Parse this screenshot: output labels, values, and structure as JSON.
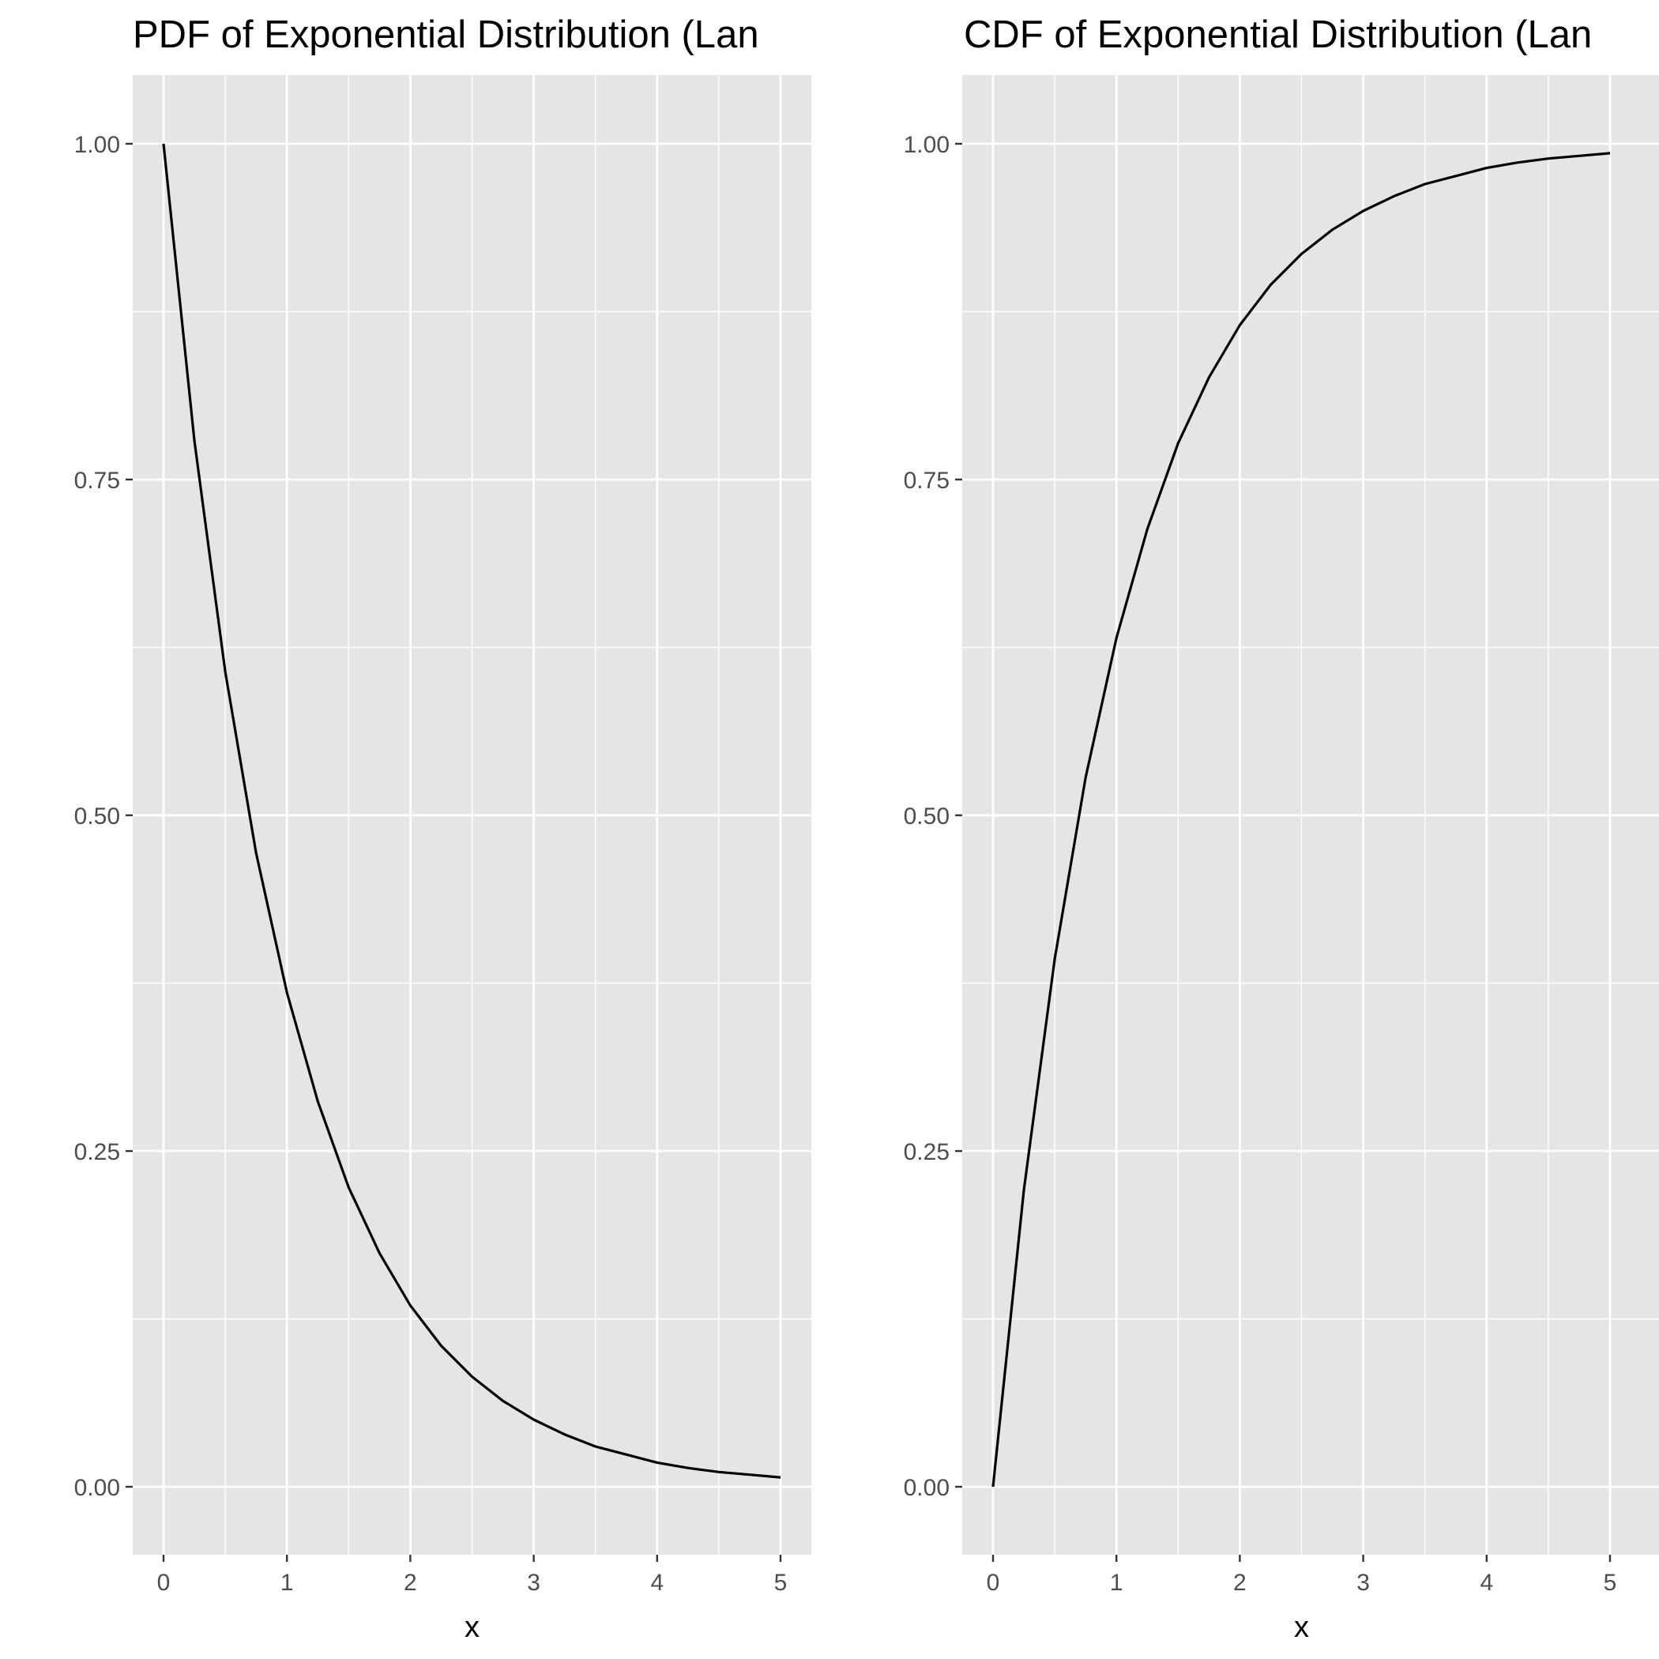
{
  "colors": {
    "panel_background": "#e5e5e5",
    "grid_line": "#ffffff",
    "curve": "#000000",
    "tick_text": "#4d4d4d",
    "tick_mark": "#333333",
    "title_text": "#000000"
  },
  "chart_data": [
    {
      "type": "line",
      "title": "PDF of Exponential Distribution (Lan",
      "xlabel": "x",
      "ylabel": "",
      "xlim": [
        -0.25,
        5.25
      ],
      "ylim": [
        -0.05,
        1.05
      ],
      "x_ticks": [
        0,
        1,
        2,
        3,
        4,
        5
      ],
      "x_tick_labels": [
        "0",
        "1",
        "2",
        "3",
        "4",
        "5"
      ],
      "x_minor_ticks": [
        0.5,
        1.5,
        2.5,
        3.5,
        4.5
      ],
      "y_ticks": [
        0,
        0.25,
        0.5,
        0.75,
        1.0
      ],
      "y_tick_labels": [
        "0.00",
        "0.25",
        "0.50",
        "0.75",
        "1.00"
      ],
      "y_minor_ticks": [
        0.125,
        0.375,
        0.625,
        0.875
      ],
      "grid": true,
      "series": [
        {
          "x": [
            0,
            0.25,
            0.5,
            0.75,
            1,
            1.25,
            1.5,
            1.75,
            2,
            2.25,
            2.5,
            2.75,
            3,
            3.25,
            3.5,
            3.75,
            4,
            4.25,
            4.5,
            4.75,
            5
          ],
          "y": [
            1.0,
            0.779,
            0.607,
            0.472,
            0.368,
            0.287,
            0.223,
            0.174,
            0.135,
            0.105,
            0.082,
            0.064,
            0.05,
            0.039,
            0.03,
            0.024,
            0.018,
            0.014,
            0.011,
            0.009,
            0.007
          ]
        }
      ]
    },
    {
      "type": "line",
      "title": "CDF of Exponential Distribution (Lan",
      "xlabel": "x",
      "ylabel": "",
      "xlim": [
        -0.25,
        5.25
      ],
      "ylim": [
        -0.05,
        1.05
      ],
      "x_ticks": [
        0,
        1,
        2,
        3,
        4,
        5
      ],
      "x_tick_labels": [
        "0",
        "1",
        "2",
        "3",
        "4",
        "5"
      ],
      "x_minor_ticks": [
        0.5,
        1.5,
        2.5,
        3.5,
        4.5
      ],
      "y_ticks": [
        0,
        0.25,
        0.5,
        0.75,
        1.0
      ],
      "y_tick_labels": [
        "0.00",
        "0.25",
        "0.50",
        "0.75",
        "1.00"
      ],
      "y_minor_ticks": [
        0.125,
        0.375,
        0.625,
        0.875
      ],
      "grid": true,
      "series": [
        {
          "x": [
            0,
            0.25,
            0.5,
            0.75,
            1,
            1.25,
            1.5,
            1.75,
            2,
            2.25,
            2.5,
            2.75,
            3,
            3.25,
            3.5,
            3.75,
            4,
            4.25,
            4.5,
            4.75,
            5
          ],
          "y": [
            0.0,
            0.221,
            0.393,
            0.528,
            0.632,
            0.713,
            0.777,
            0.826,
            0.865,
            0.895,
            0.918,
            0.936,
            0.95,
            0.961,
            0.97,
            0.976,
            0.982,
            0.986,
            0.989,
            0.991,
            0.993
          ]
        }
      ]
    }
  ]
}
